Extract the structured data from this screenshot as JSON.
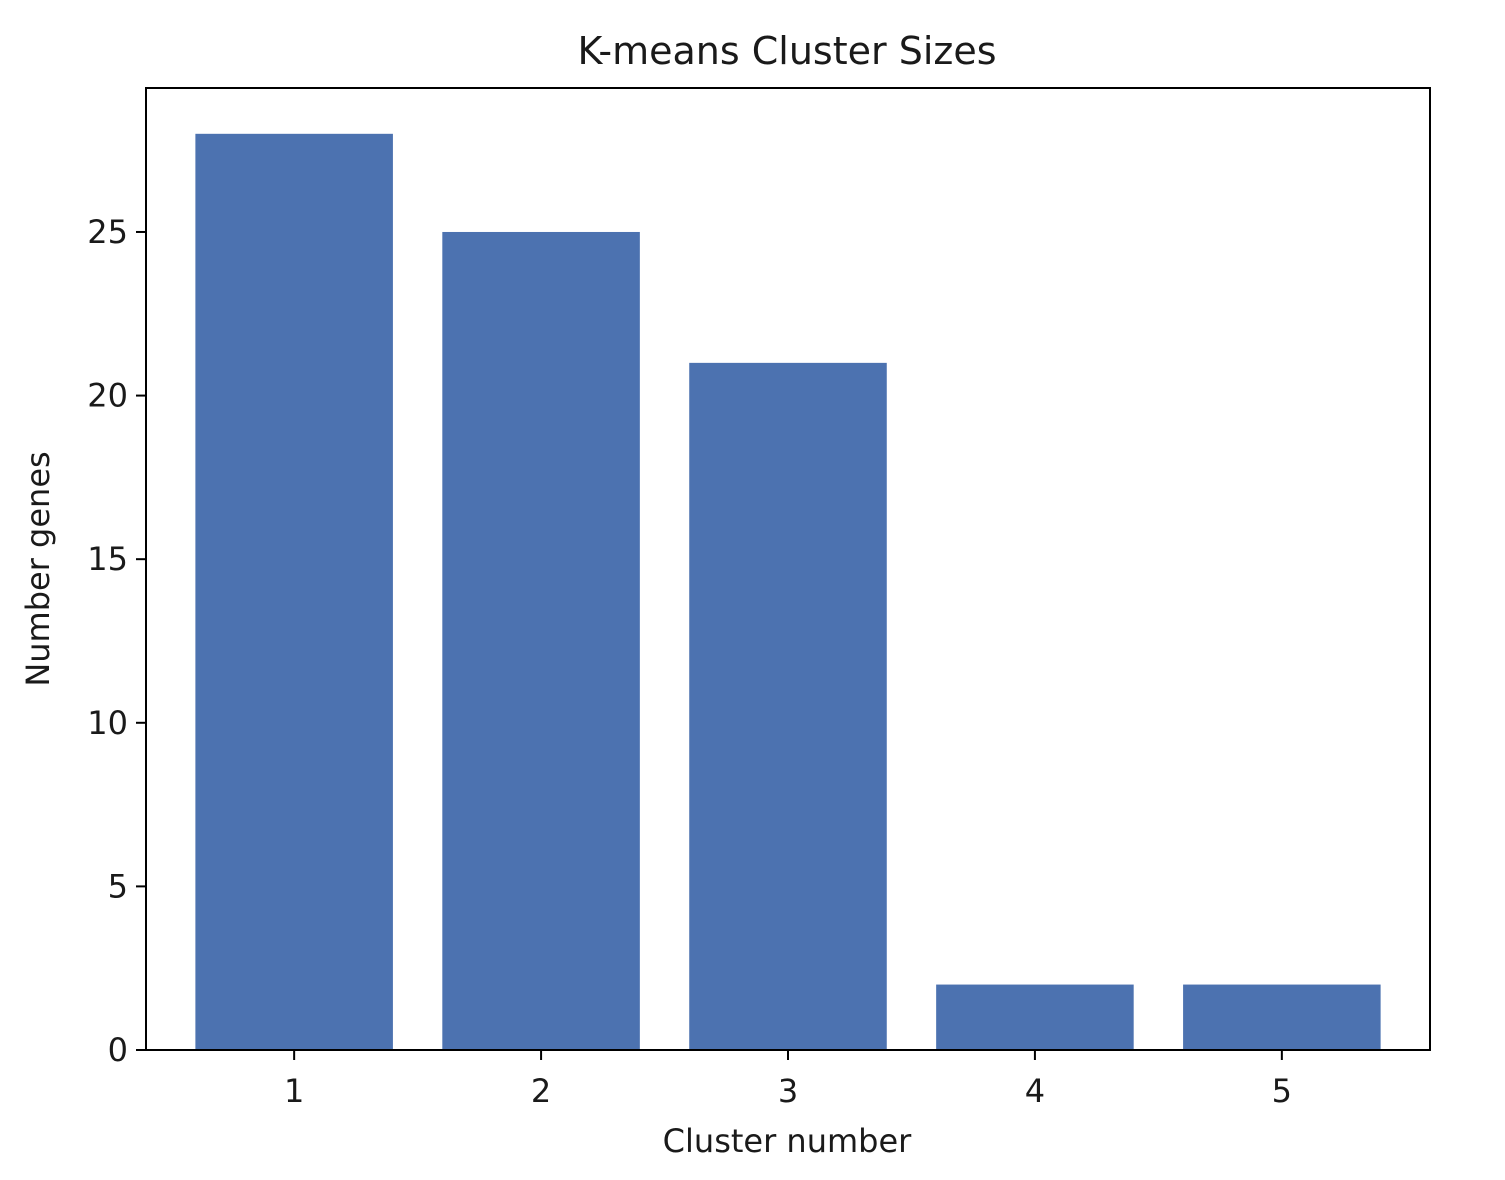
{
  "chart_data": {
    "type": "bar",
    "title": "K-means Cluster Sizes",
    "xlabel": "Cluster number",
    "ylabel": "Number genes",
    "categories": [
      "1",
      "2",
      "3",
      "4",
      "5"
    ],
    "values": [
      28,
      25,
      21,
      2,
      2
    ],
    "ylim": [
      0,
      29.4
    ],
    "yticks": [
      0,
      5,
      10,
      15,
      20,
      25
    ],
    "ytick_labels": [
      "0",
      "5",
      "10",
      "15",
      "20",
      "25"
    ],
    "grid": false,
    "legend": "none",
    "bar_color": "#4c72b0"
  }
}
